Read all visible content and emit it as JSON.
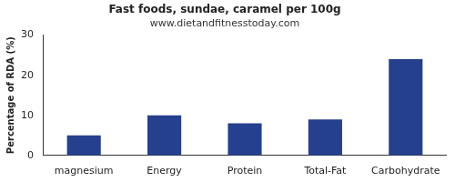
{
  "chart_data": {
    "type": "bar",
    "title": "Fast foods, sundae, caramel per 100g",
    "subtitle": "www.dietandfitnesstoday.com",
    "y_label": "Percentage of RDA (%)",
    "categories": [
      "magnesium",
      "Energy",
      "Protein",
      "Total-Fat",
      "Carbohydrate"
    ],
    "values": [
      5,
      10,
      8,
      9,
      24
    ],
    "color": "#24408e",
    "ylim": [
      0,
      30
    ],
    "yticks": [
      0,
      10,
      20,
      30
    ],
    "grid": false
  }
}
